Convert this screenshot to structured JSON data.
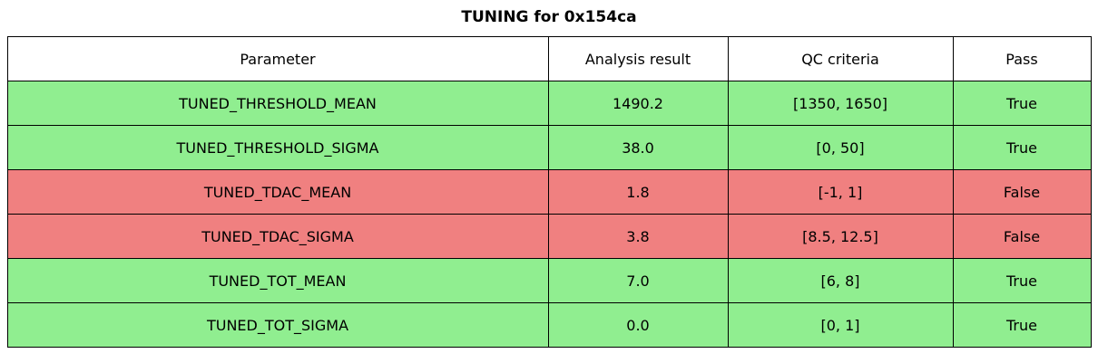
{
  "colors": {
    "pass_row": "#90ee90",
    "fail_row": "#f08080",
    "header_bg": "#ffffff",
    "border": "#000000"
  },
  "chart_data": {
    "type": "table",
    "title": "TUNING for 0x154ca",
    "columns": [
      "Parameter",
      "Analysis result",
      "QC criteria",
      "Pass"
    ],
    "rows": [
      {
        "cells": [
          "TUNED_THRESHOLD_MEAN",
          "1490.2",
          "[1350, 1650]",
          "True"
        ],
        "status": "pass"
      },
      {
        "cells": [
          "TUNED_THRESHOLD_SIGMA",
          "38.0",
          "[0, 50]",
          "True"
        ],
        "status": "pass"
      },
      {
        "cells": [
          "TUNED_TDAC_MEAN",
          "1.8",
          "[-1, 1]",
          "False"
        ],
        "status": "fail"
      },
      {
        "cells": [
          "TUNED_TDAC_SIGMA",
          "3.8",
          "[8.5, 12.5]",
          "False"
        ],
        "status": "fail"
      },
      {
        "cells": [
          "TUNED_TOT_MEAN",
          "7.0",
          "[6, 8]",
          "True"
        ],
        "status": "pass"
      },
      {
        "cells": [
          "TUNED_TOT_SIGMA",
          "0.0",
          "[0, 1]",
          "True"
        ],
        "status": "pass"
      }
    ]
  }
}
